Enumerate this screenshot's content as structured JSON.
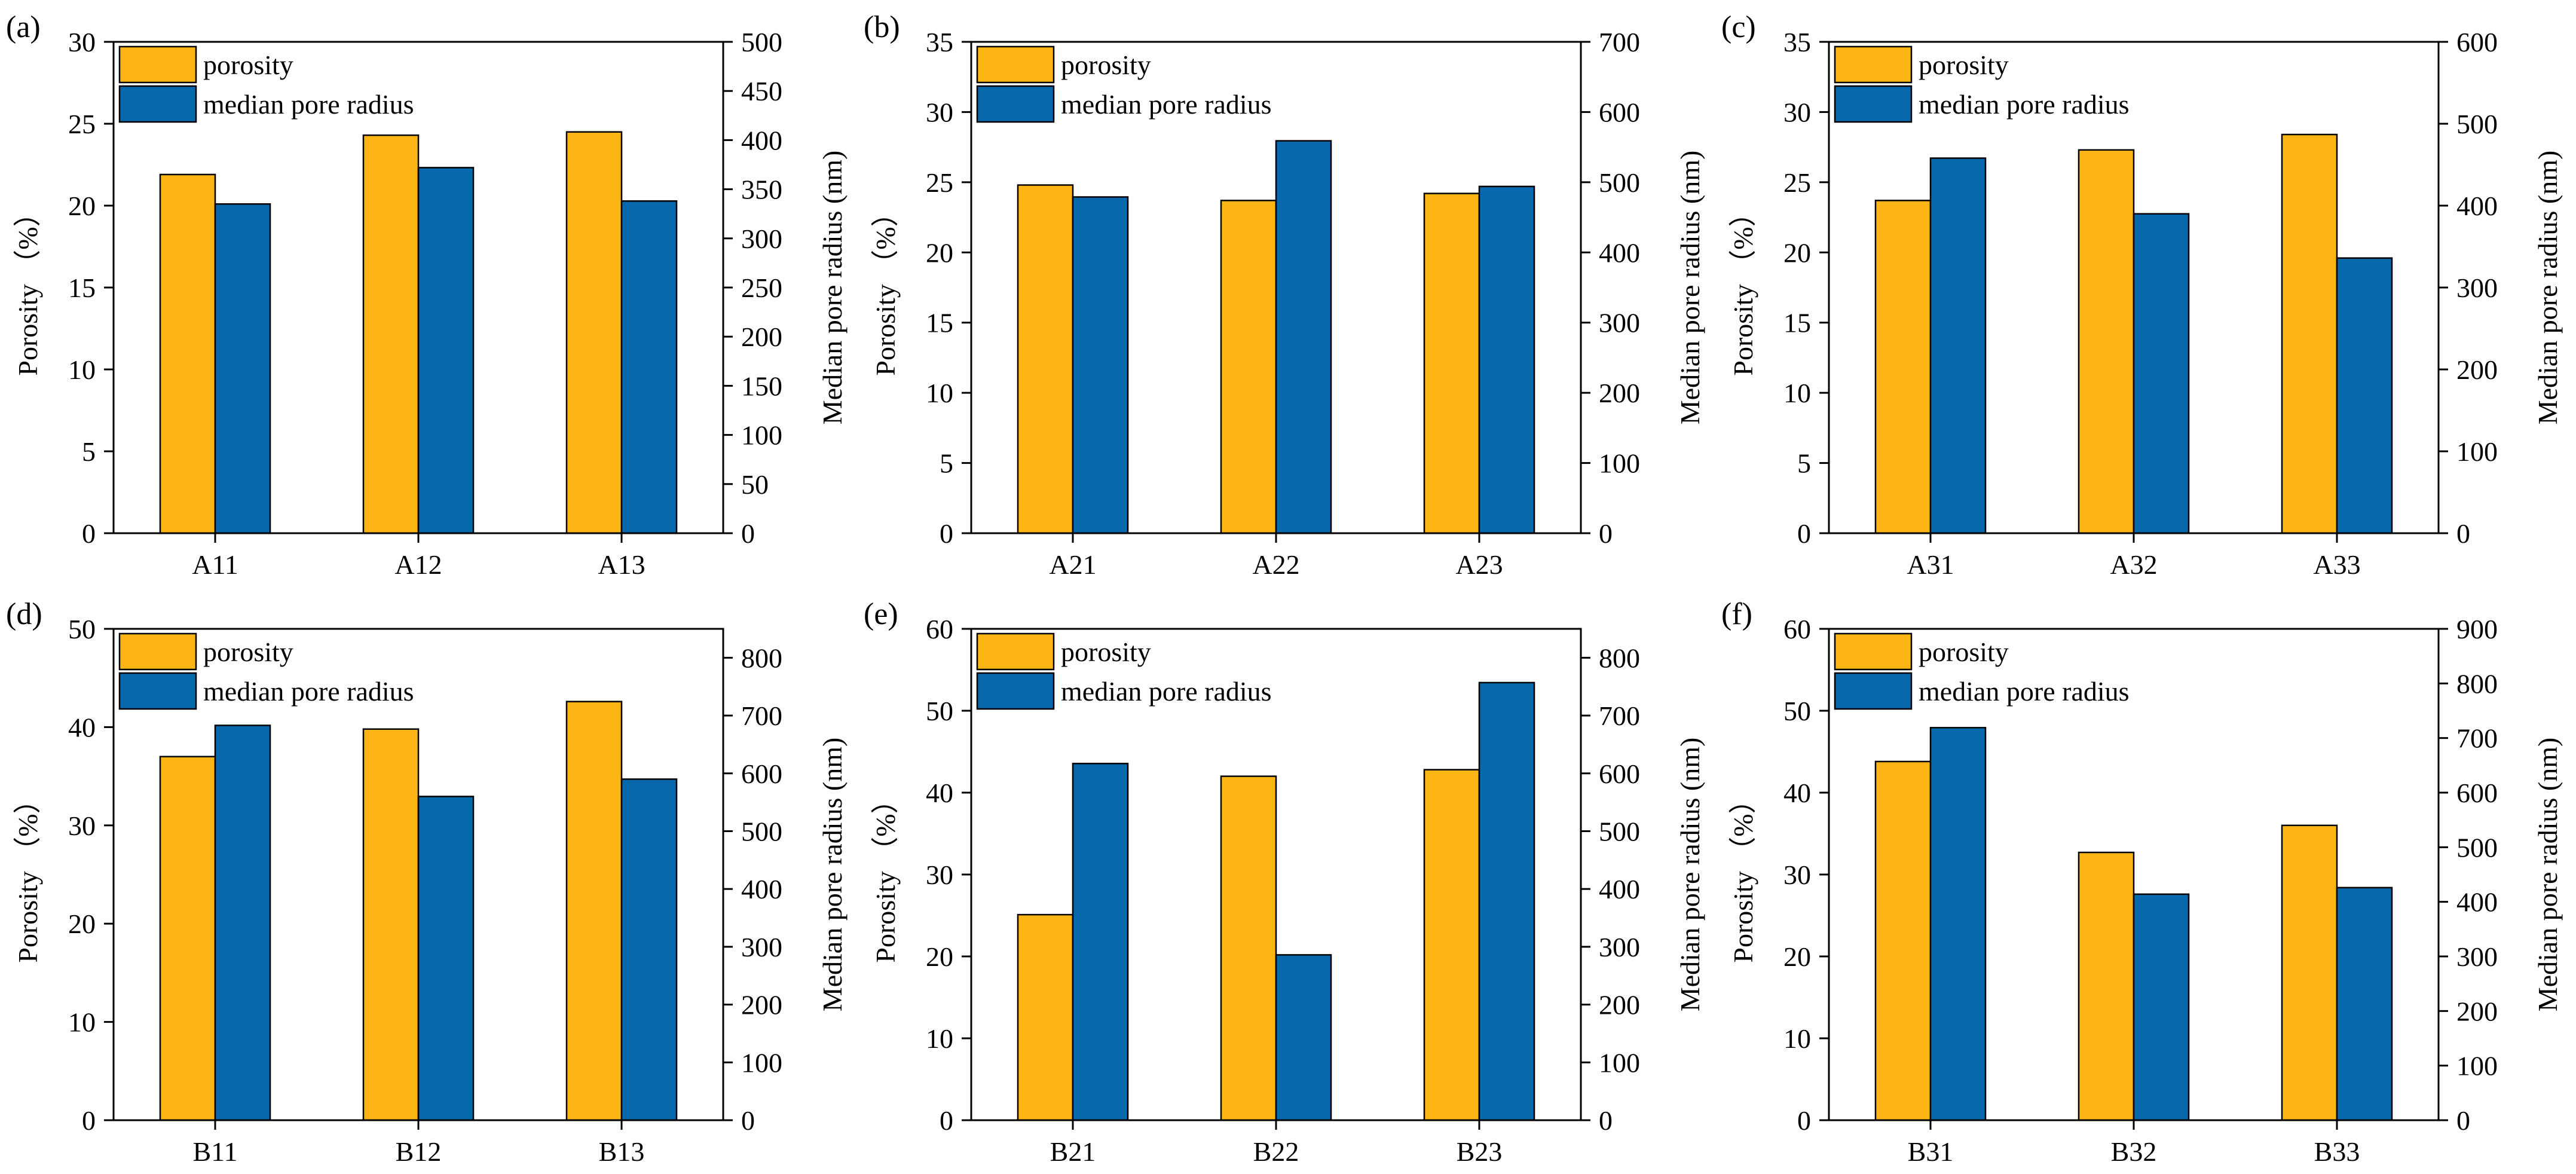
{
  "colors": {
    "porosity": "#FDB515",
    "median": "#0868AC",
    "stroke": "#000000"
  },
  "chart_data": [
    {
      "type": "bar",
      "panel_label": "(a)",
      "categories": [
        "A11",
        "A12",
        "A13"
      ],
      "series": [
        {
          "name": "porosity",
          "axis": "left",
          "values": [
            21.9,
            24.3,
            24.5
          ]
        },
        {
          "name": "median pore radius",
          "axis": "right",
          "values": [
            335,
            372,
            338
          ]
        }
      ],
      "ylabel": "Porosity （%）",
      "y2label": "Median pore radius (nm)",
      "ylim": [
        0,
        30
      ],
      "yticks": [
        0,
        5,
        10,
        15,
        20,
        25,
        30
      ],
      "y2lim": [
        0,
        500
      ],
      "y2ticks": [
        0,
        50,
        100,
        150,
        200,
        250,
        300,
        350,
        400,
        450,
        500
      ],
      "legend": "top-left",
      "grid": false
    },
    {
      "type": "bar",
      "panel_label": "(b)",
      "categories": [
        "A21",
        "A22",
        "A23"
      ],
      "series": [
        {
          "name": "porosity",
          "axis": "left",
          "values": [
            24.8,
            23.7,
            24.2
          ]
        },
        {
          "name": "median pore radius",
          "axis": "right",
          "values": [
            479,
            559,
            494
          ]
        }
      ],
      "ylabel": "Porosity （%）",
      "y2label": "Median pore radius (nm)",
      "ylim": [
        0,
        35
      ],
      "yticks": [
        0,
        5,
        10,
        15,
        20,
        25,
        30,
        35
      ],
      "y2lim": [
        0,
        700
      ],
      "y2ticks": [
        0,
        100,
        200,
        300,
        400,
        500,
        600,
        700
      ],
      "legend": "top-left",
      "grid": false
    },
    {
      "type": "bar",
      "panel_label": "(c)",
      "categories": [
        "A31",
        "A32",
        "A33"
      ],
      "series": [
        {
          "name": "porosity",
          "axis": "left",
          "values": [
            23.7,
            27.3,
            28.4
          ]
        },
        {
          "name": "median pore radius",
          "axis": "right",
          "values": [
            458,
            390,
            336
          ]
        }
      ],
      "ylabel": "Porosity （%）",
      "y2label": "Median pore radius (nm)",
      "ylim": [
        0,
        35
      ],
      "yticks": [
        0,
        5,
        10,
        15,
        20,
        25,
        30,
        35
      ],
      "y2lim": [
        0,
        600
      ],
      "y2ticks": [
        0,
        100,
        200,
        300,
        400,
        500,
        600
      ],
      "legend": "top-left",
      "grid": false
    },
    {
      "type": "bar",
      "panel_label": "(d)",
      "categories": [
        "B11",
        "B12",
        "B13"
      ],
      "series": [
        {
          "name": "porosity",
          "axis": "left",
          "values": [
            37.0,
            39.8,
            42.6
          ]
        },
        {
          "name": "median pore radius",
          "axis": "right",
          "values": [
            683,
            560,
            590
          ]
        }
      ],
      "ylabel": "Porosity （%）",
      "y2label": "Median pore radius (nm)",
      "ylim": [
        0,
        50
      ],
      "yticks": [
        0,
        10,
        20,
        30,
        40,
        50
      ],
      "y2lim": [
        0,
        850
      ],
      "y2ticks": [
        0,
        100,
        200,
        300,
        400,
        500,
        600,
        700,
        800
      ],
      "legend": "top-left",
      "grid": false
    },
    {
      "type": "bar",
      "panel_label": "(e)",
      "categories": [
        "B21",
        "B22",
        "B23"
      ],
      "series": [
        {
          "name": "porosity",
          "axis": "left",
          "values": [
            25.1,
            42.0,
            42.8
          ]
        },
        {
          "name": "median pore radius",
          "axis": "right",
          "values": [
            617,
            286,
            757
          ]
        }
      ],
      "ylabel": "Porosity （%）",
      "y2label": "Median pore radius (nm)",
      "ylim": [
        0,
        60
      ],
      "yticks": [
        0,
        10,
        20,
        30,
        40,
        50,
        60
      ],
      "y2lim": [
        0,
        850
      ],
      "y2ticks": [
        0,
        100,
        200,
        300,
        400,
        500,
        600,
        700,
        800
      ],
      "legend": "top-left",
      "grid": false
    },
    {
      "type": "bar",
      "panel_label": "(f)",
      "categories": [
        "B31",
        "B32",
        "B33"
      ],
      "series": [
        {
          "name": "porosity",
          "axis": "left",
          "values": [
            43.8,
            32.7,
            36.0
          ]
        },
        {
          "name": "median pore radius",
          "axis": "right",
          "values": [
            719,
            414,
            426
          ]
        }
      ],
      "ylabel": "Porosity （%）",
      "y2label": "Median pore radius (nm)",
      "ylim": [
        0,
        60
      ],
      "yticks": [
        0,
        10,
        20,
        30,
        40,
        50,
        60
      ],
      "y2lim": [
        0,
        900
      ],
      "y2ticks": [
        0,
        100,
        200,
        300,
        400,
        500,
        600,
        700,
        800,
        900
      ],
      "legend": "top-left",
      "grid": false
    }
  ]
}
